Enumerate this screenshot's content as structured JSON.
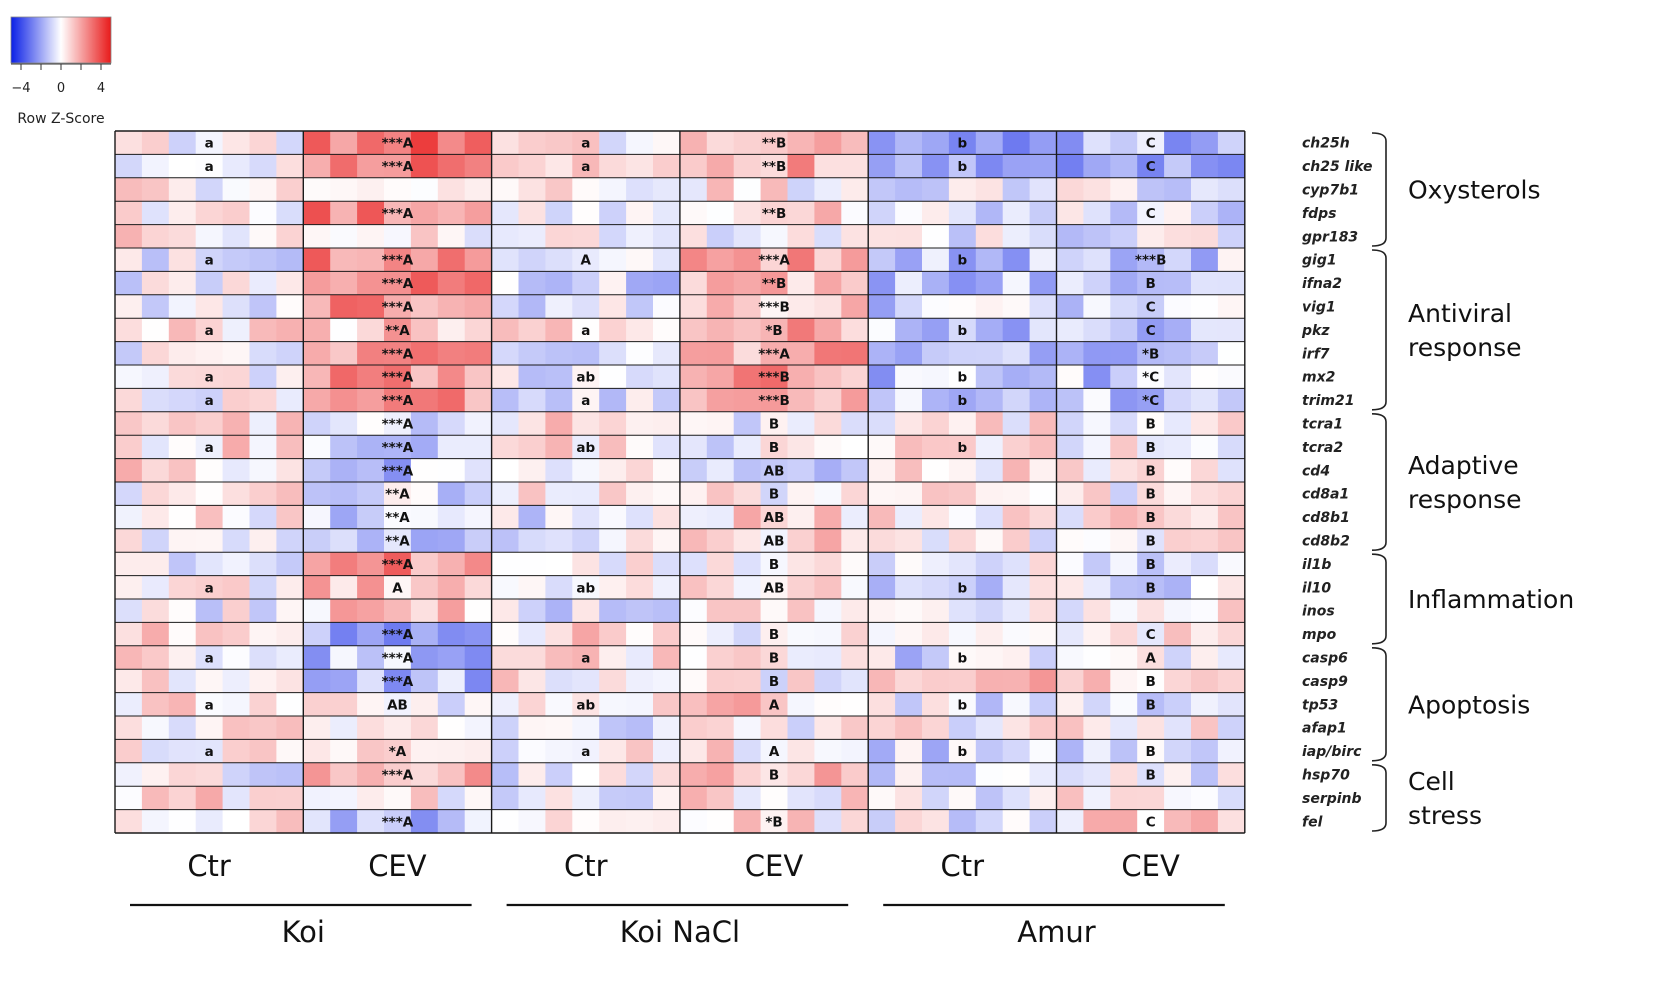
{
  "chart_data": {
    "type": "heatmap",
    "legend": {
      "title": "Row Z-Score",
      "ticks": [
        -4,
        0,
        4
      ],
      "range": [
        -5,
        5
      ],
      "colors": {
        "low": "#0a1fe6",
        "mid": "#ffffff",
        "high": "#e81a1a"
      }
    },
    "genes": [
      "ch25h",
      "ch25 like",
      "cyp7b1",
      "fdps",
      "gpr183",
      "gig1",
      "ifna2",
      "vig1",
      "pkz",
      "irf7",
      "mx2",
      "trim21",
      "tcra1",
      "tcra2",
      "cd4",
      "cd8a1",
      "cd8b1",
      "cd8b2",
      "il1b",
      "il10",
      "inos",
      "mpo",
      "casp6",
      "casp9",
      "tp53",
      "afap1",
      "iap/birc",
      "hsp70",
      "serpinb",
      "fel"
    ],
    "columns_per_condition": 7,
    "conditions": [
      {
        "strain": "Koi",
        "treatment": "Ctr"
      },
      {
        "strain": "Koi",
        "treatment": "CEV"
      },
      {
        "strain": "Koi NaCl",
        "treatment": "Ctr"
      },
      {
        "strain": "Koi NaCl",
        "treatment": "CEV"
      },
      {
        "strain": "Amur",
        "treatment": "Ctr"
      },
      {
        "strain": "Amur",
        "treatment": "CEV"
      }
    ],
    "strain_groups": [
      "Koi",
      "Koi NaCl",
      "Amur"
    ],
    "condition_means": [
      [
        0.1,
        3.0,
        0.3,
        1.6,
        -2.0,
        -1.6
      ],
      [
        0.1,
        3.0,
        0.3,
        1.6,
        -2.0,
        -1.6
      ],
      [
        0.2,
        0.4,
        0.6,
        0.3,
        -0.4,
        -0.2
      ],
      [
        0.0,
        2.8,
        -0.3,
        0.8,
        -0.6,
        -0.7
      ],
      [
        0.6,
        0.4,
        0.4,
        0.2,
        -0.5,
        -0.4
      ],
      [
        -0.3,
        2.4,
        -0.6,
        1.8,
        -1.5,
        -1.0
      ],
      [
        -0.4,
        2.6,
        -0.8,
        1.6,
        -1.2,
        -1.1
      ],
      [
        -0.3,
        2.4,
        -0.6,
        1.3,
        -1.0,
        -1.0
      ],
      [
        0.5,
        1.2,
        0.6,
        1.8,
        -1.2,
        -1.6
      ],
      [
        -0.2,
        2.4,
        -0.4,
        2.0,
        -1.0,
        -1.0
      ],
      [
        -0.2,
        2.5,
        -0.4,
        2.1,
        -1.3,
        -1.2
      ],
      [
        -0.2,
        2.4,
        -0.4,
        2.0,
        -1.3,
        -1.2
      ],
      [
        0.8,
        -1.0,
        0.7,
        -0.3,
        0.2,
        0.2
      ],
      [
        0.7,
        -1.0,
        0.6,
        -0.3,
        0.2,
        0.3
      ],
      [
        0.6,
        -1.2,
        0.3,
        -0.6,
        0.4,
        0.6
      ],
      [
        0.3,
        -0.8,
        0.4,
        0.2,
        0.1,
        0.1
      ],
      [
        0.2,
        -1.2,
        -0.4,
        0.8,
        0.2,
        0.4
      ],
      [
        0.2,
        -1.2,
        -0.4,
        0.8,
        0.2,
        0.4
      ],
      [
        0.0,
        2.4,
        -0.2,
        0.3,
        -0.4,
        -0.4
      ],
      [
        0.3,
        1.2,
        -0.2,
        0.6,
        -0.6,
        -0.5
      ],
      [
        -0.2,
        1.0,
        -0.4,
        0.6,
        -0.4,
        0.4
      ],
      [
        0.7,
        -1.8,
        0.7,
        0.3,
        -0.4,
        0.4
      ],
      [
        0.5,
        -1.4,
        0.8,
        0.4,
        -0.8,
        -0.5
      ],
      [
        0.6,
        -1.4,
        0.4,
        0.2,
        1.2,
        0.7
      ],
      [
        0.7,
        0.0,
        0.6,
        1.0,
        -0.4,
        -0.8
      ],
      [
        0.3,
        0.0,
        -0.6,
        0.2,
        0.1,
        0.2
      ],
      [
        0.5,
        1.2,
        0.2,
        0.4,
        -1.0,
        -0.8
      ],
      [
        -0.1,
        2.0,
        -0.5,
        1.1,
        -0.6,
        -0.4
      ],
      [
        0.6,
        0.3,
        -0.6,
        0.5,
        -0.3,
        0.2
      ],
      [
        0.4,
        -1.4,
        0.4,
        0.4,
        -0.2,
        0.7
      ]
    ],
    "annotations": [
      [
        "a",
        "***A",
        "a",
        "**B",
        "b",
        "C"
      ],
      [
        "a",
        "***A",
        "a",
        "**B",
        "b",
        "C"
      ],
      [
        "",
        "",
        "",
        "",
        "",
        ""
      ],
      [
        "",
        "***A",
        "",
        "**B",
        "",
        "C"
      ],
      [
        "",
        "",
        "",
        "",
        "",
        ""
      ],
      [
        "a",
        "***A",
        "A",
        "***A",
        "b",
        "***B"
      ],
      [
        "",
        "***A",
        "",
        "**B",
        "",
        "B"
      ],
      [
        "",
        "***A",
        "",
        "***B",
        "",
        "C"
      ],
      [
        "a",
        "**A",
        "a",
        "*B",
        "b",
        "C"
      ],
      [
        "",
        "***A",
        "",
        "***A",
        "",
        "*B"
      ],
      [
        "a",
        "***A",
        "ab",
        "***B",
        "b",
        "*C"
      ],
      [
        "a",
        "***A",
        "a",
        "***B",
        "b",
        "*C"
      ],
      [
        "",
        "***A",
        "",
        "B",
        "",
        "B"
      ],
      [
        "a",
        "***A",
        "ab",
        "B",
        "b",
        "B"
      ],
      [
        "",
        "***A",
        "",
        "AB",
        "",
        "B"
      ],
      [
        "",
        "**A",
        "",
        "B",
        "",
        "B"
      ],
      [
        "",
        "**A",
        "",
        "AB",
        "",
        "B"
      ],
      [
        "",
        "**A",
        "",
        "AB",
        "",
        "B"
      ],
      [
        "",
        "***A",
        "",
        "B",
        "",
        "B"
      ],
      [
        "a",
        "A",
        "ab",
        "AB",
        "b",
        "B"
      ],
      [
        "",
        "",
        "",
        "",
        "",
        ""
      ],
      [
        "",
        "***A",
        "",
        "B",
        "",
        "C"
      ],
      [
        "a",
        "***A",
        "a",
        "B",
        "b",
        "A"
      ],
      [
        "",
        "***A",
        "",
        "B",
        "",
        "B"
      ],
      [
        "a",
        "AB",
        "ab",
        "A",
        "b",
        "B"
      ],
      [
        "",
        "",
        "",
        "",
        "",
        ""
      ],
      [
        "a",
        "*A",
        "a",
        "A",
        "b",
        "B"
      ],
      [
        "",
        "***A",
        "",
        "B",
        "",
        "B"
      ],
      [
        "",
        "",
        "",
        "",
        "",
        ""
      ],
      [
        "",
        "***A",
        "",
        "*B",
        "",
        "C"
      ]
    ],
    "categories": [
      {
        "label": "Oxysterols",
        "rows": [
          0,
          4
        ]
      },
      {
        "label": "Antiviral response",
        "rows": [
          5,
          11
        ]
      },
      {
        "label": "Adaptive response",
        "rows": [
          12,
          17
        ]
      },
      {
        "label": "Inflammation",
        "rows": [
          18,
          21
        ]
      },
      {
        "label": "Apoptosis",
        "rows": [
          22,
          26
        ]
      },
      {
        "label": "Cell stress",
        "rows": [
          27,
          29
        ]
      }
    ],
    "xlabel": "",
    "ylabel": ""
  }
}
